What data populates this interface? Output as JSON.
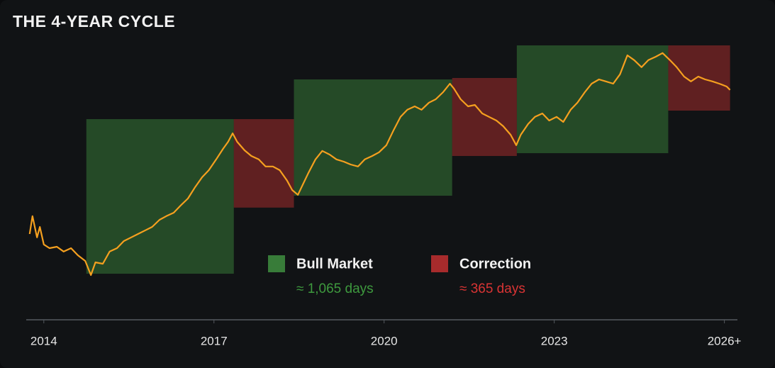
{
  "chart_data": {
    "type": "line",
    "title": "THE 4-YEAR CYCLE",
    "color": "#f5a01f",
    "xlim": [
      2013.69,
      2026.23
    ],
    "ylim": [
      0,
      100
    ],
    "xticks": [
      2014,
      2017,
      2020,
      2023,
      {
        "value": 2026,
        "label": "2026+"
      }
    ],
    "x": [
      2013.75,
      2013.8,
      2013.88,
      2013.93,
      2014,
      2014.1,
      2014.23,
      2014.35,
      2014.48,
      2014.6,
      2014.73,
      2014.83,
      2014.91,
      2015.04,
      2015.16,
      2015.29,
      2015.41,
      2015.54,
      2015.66,
      2015.79,
      2015.91,
      2016.04,
      2016.16,
      2016.29,
      2016.41,
      2016.54,
      2016.66,
      2016.79,
      2016.91,
      2017.04,
      2017.16,
      2017.25,
      2017.33,
      2017.41,
      2017.54,
      2017.66,
      2017.79,
      2017.91,
      2018.04,
      2018.16,
      2018.29,
      2018.38,
      2018.48,
      2018.54,
      2018.66,
      2018.79,
      2018.91,
      2019.04,
      2019.16,
      2019.29,
      2019.41,
      2019.54,
      2019.66,
      2019.79,
      2019.91,
      2020.04,
      2020.16,
      2020.29,
      2020.41,
      2020.54,
      2020.66,
      2020.79,
      2020.91,
      2021.04,
      2021.16,
      2021.23,
      2021.35,
      2021.48,
      2021.6,
      2021.73,
      2021.85,
      2021.98,
      2022.1,
      2022.23,
      2022.33,
      2022.41,
      2022.54,
      2022.66,
      2022.79,
      2022.91,
      2023.04,
      2023.16,
      2023.29,
      2023.41,
      2023.54,
      2023.66,
      2023.79,
      2023.91,
      2024.04,
      2024.16,
      2024.29,
      2024.41,
      2024.54,
      2024.66,
      2024.79,
      2024.91,
      2025.04,
      2025.16,
      2025.29,
      2025.41,
      2025.54,
      2025.66,
      2025.79,
      2025.91,
      2026.04,
      2026.1
    ],
    "values": [
      27.5,
      33.8,
      26.3,
      30,
      23.8,
      22.5,
      23,
      21.3,
      22.5,
      20,
      18,
      13,
      17.5,
      17,
      21.3,
      22.5,
      25,
      26.3,
      27.5,
      28.8,
      30,
      32.5,
      33.8,
      35,
      37.5,
      40,
      43.8,
      47.5,
      50,
      53.8,
      57.5,
      60,
      63,
      60,
      57,
      55,
      53.8,
      51.3,
      51.3,
      50,
      46.3,
      43,
      41.3,
      43.8,
      48.8,
      53.8,
      56.8,
      55.5,
      53.8,
      53,
      52,
      51.3,
      53.8,
      55,
      56.3,
      58.8,
      63.8,
      68.8,
      71.3,
      72.5,
      71.3,
      73.8,
      75,
      77.5,
      80.5,
      78.8,
      75,
      72.5,
      73,
      70,
      68.8,
      67.5,
      65.5,
      62.5,
      58.8,
      62.5,
      66.3,
      68.8,
      70,
      67.5,
      68.8,
      67,
      71.3,
      73.8,
      77.5,
      80.5,
      82,
      81.3,
      80.5,
      83.8,
      90.5,
      88.8,
      86.3,
      88.8,
      90,
      91.3,
      88.8,
      86.3,
      83,
      81.3,
      83,
      82,
      81.3,
      80.5,
      79.5,
      78.3
    ],
    "bands": [
      {
        "name": "Bull Market",
        "color": "#3f8f3f",
        "caption": "≈ 1,065 days",
        "caption_color": "#3e9a3e",
        "ranges": [
          {
            "x": [
              2014.75,
              2017.35
            ],
            "y": [
              13.5,
              68
            ]
          },
          {
            "x": [
              2018.41,
              2021.2
            ],
            "y": [
              41,
              82
            ]
          },
          {
            "x": [
              2022.34,
              2025.01
            ],
            "y": [
              56,
              94
            ]
          }
        ]
      },
      {
        "name": "Correction",
        "color": "#c23030",
        "caption": "≈ 365 days",
        "caption_color": "#d93434",
        "ranges": [
          {
            "x": [
              2017.35,
              2018.41
            ],
            "y": [
              36.8,
              68
            ]
          },
          {
            "x": [
              2021.2,
              2022.34
            ],
            "y": [
              55,
              82.5
            ]
          },
          {
            "x": [
              2025.01,
              2026.1
            ],
            "y": [
              71,
              94
            ]
          }
        ]
      }
    ]
  }
}
